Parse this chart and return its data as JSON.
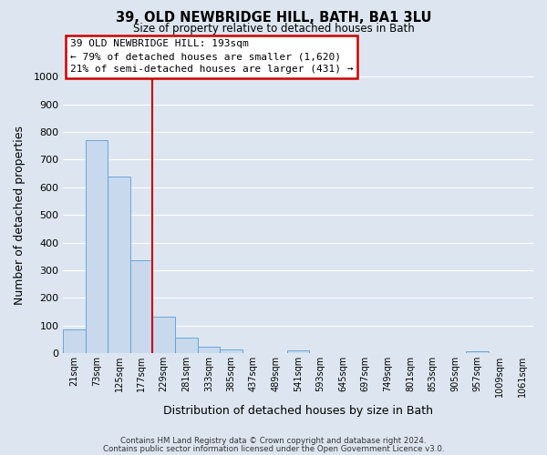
{
  "title": "39, OLD NEWBRIDGE HILL, BATH, BA1 3LU",
  "subtitle": "Size of property relative to detached houses in Bath",
  "xlabel": "Distribution of detached houses by size in Bath",
  "ylabel": "Number of detached properties",
  "bar_labels": [
    "21sqm",
    "73sqm",
    "125sqm",
    "177sqm",
    "229sqm",
    "281sqm",
    "333sqm",
    "385sqm",
    "437sqm",
    "489sqm",
    "541sqm",
    "593sqm",
    "645sqm",
    "697sqm",
    "749sqm",
    "801sqm",
    "853sqm",
    "905sqm",
    "957sqm",
    "1009sqm",
    "1061sqm"
  ],
  "bar_values": [
    85,
    770,
    640,
    335,
    133,
    58,
    22,
    15,
    0,
    0,
    9,
    0,
    0,
    0,
    0,
    0,
    0,
    0,
    7,
    0,
    0
  ],
  "bar_color": "#c8d9ee",
  "bar_edge_color": "#5b9bd5",
  "ylim": [
    0,
    1000
  ],
  "yticks": [
    0,
    100,
    200,
    300,
    400,
    500,
    600,
    700,
    800,
    900,
    1000
  ],
  "vline_x": 3.5,
  "vline_color": "#cc0000",
  "annotation_title": "39 OLD NEWBRIDGE HILL: 193sqm",
  "annotation_line1": "← 79% of detached houses are smaller (1,620)",
  "annotation_line2": "21% of semi-detached houses are larger (431) →",
  "annotation_box_color": "#cc0000",
  "footer_line1": "Contains HM Land Registry data © Crown copyright and database right 2024.",
  "footer_line2": "Contains public sector information licensed under the Open Government Licence v3.0.",
  "fig_facecolor": "#dde6f0",
  "plot_facecolor": "#dde6f0",
  "grid_color": "#ffffff"
}
